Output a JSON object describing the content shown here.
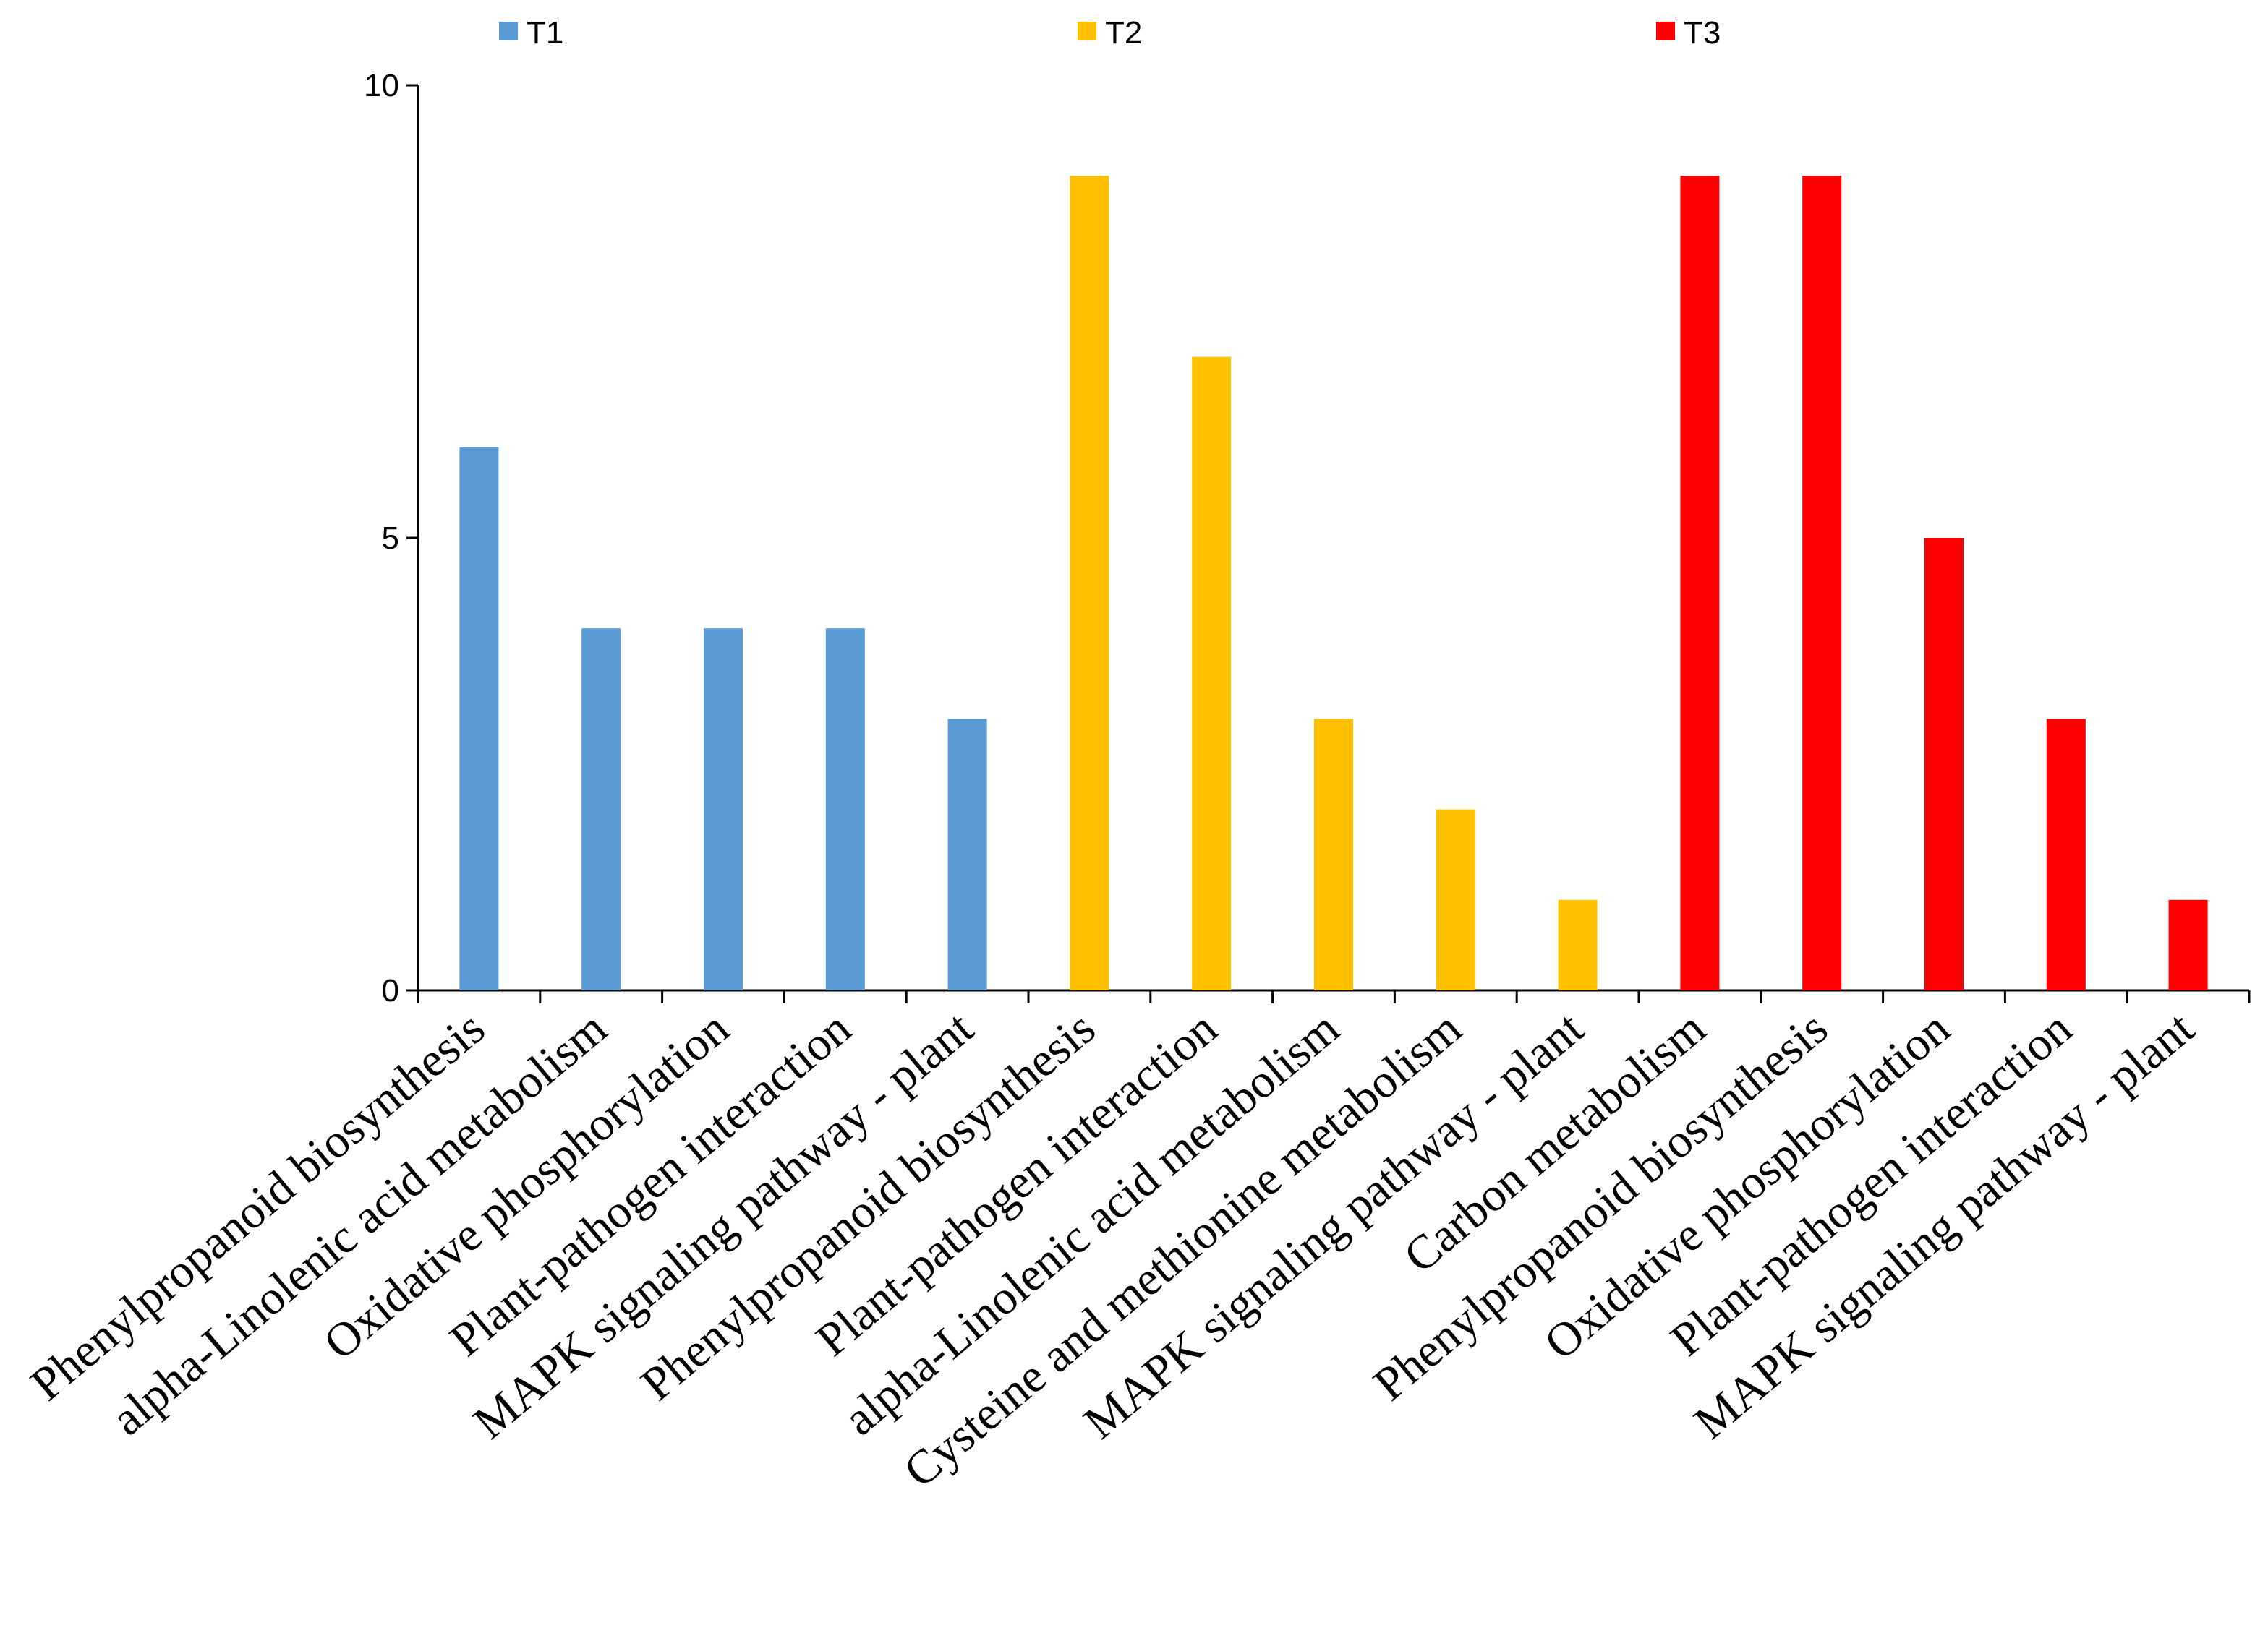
{
  "chart_data": {
    "type": "bar",
    "title": "",
    "xlabel": "",
    "ylabel": "",
    "ylim": [
      0,
      10
    ],
    "yticks": [
      "0",
      "5",
      "10"
    ],
    "legend": {
      "placement": "top",
      "entries": [
        {
          "name": "T1",
          "color": "#5b9bd5"
        },
        {
          "name": "T2",
          "color": "#ffc000"
        },
        {
          "name": "T3",
          "color": "#ff0000"
        }
      ]
    },
    "categories": [
      "Phenylpropanoid biosynthesis",
      "alpha-Linolenic acid metabolism",
      "Oxidative phosphorylation",
      "Plant-pathogen interaction",
      "MAPK signaling pathway - plant",
      "Phenylpropanoid biosynthesis",
      "Plant-pathogen interaction",
      "alpha-Linolenic acid metabolism",
      "Cysteine and methionine metabolism",
      "MAPK signaling pathway - plant",
      "Carbon metabolism",
      "Phenylpropanoid biosynthesis",
      "Oxidative phosphorylation",
      "Plant-pathogen interaction",
      "MAPK signaling pathway - plant"
    ],
    "values": [
      6,
      4,
      4,
      4,
      3,
      9,
      7,
      3,
      2,
      1,
      9,
      9,
      5,
      3,
      1
    ],
    "groups": [
      "T1",
      "T1",
      "T1",
      "T1",
      "T1",
      "T2",
      "T2",
      "T2",
      "T2",
      "T2",
      "T3",
      "T3",
      "T3",
      "T3",
      "T3"
    ]
  }
}
